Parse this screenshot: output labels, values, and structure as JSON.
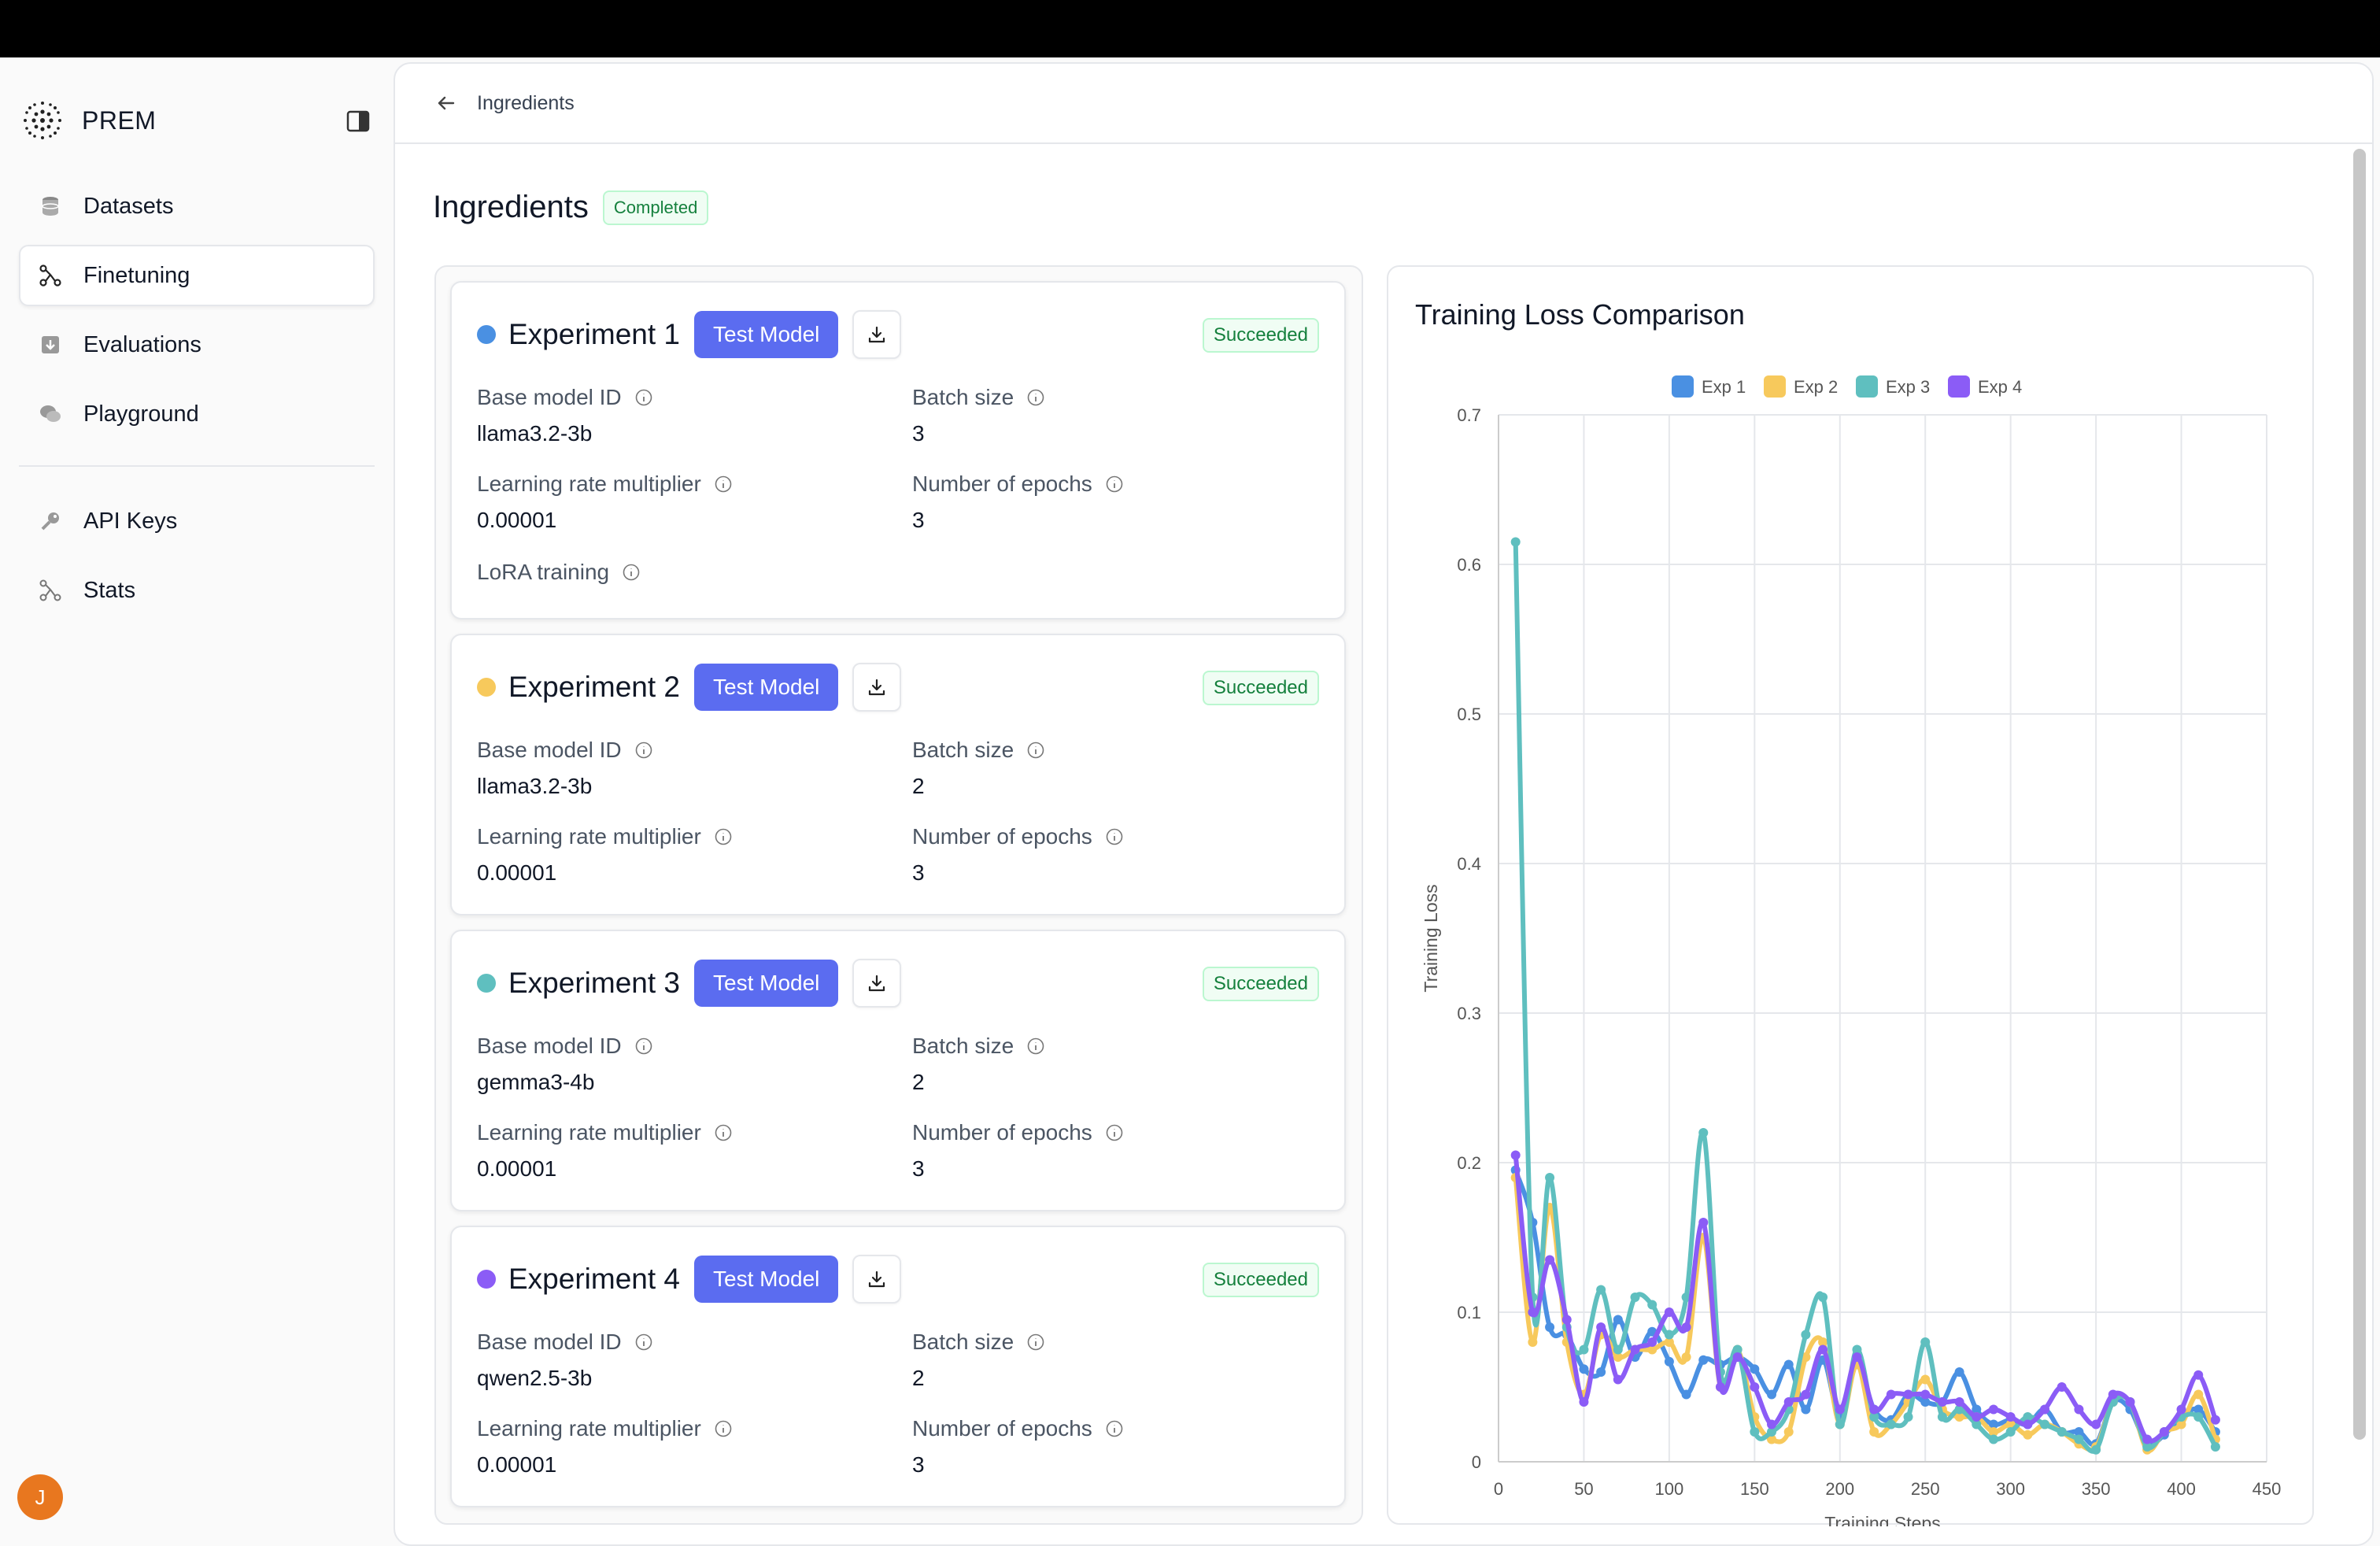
{
  "app": {
    "brand": "PREM",
    "user_initial": "J"
  },
  "sidebar": {
    "items": [
      {
        "label": "Datasets",
        "icon": "database-icon"
      },
      {
        "label": "Finetuning",
        "icon": "finetune-icon",
        "active": true
      },
      {
        "label": "Evaluations",
        "icon": "evaluation-icon"
      },
      {
        "label": "Playground",
        "icon": "chat-icon"
      }
    ],
    "items2": [
      {
        "label": "API Keys",
        "icon": "key-icon"
      },
      {
        "label": "Stats",
        "icon": "stats-icon"
      }
    ]
  },
  "breadcrumb": {
    "label": "Ingredients"
  },
  "page": {
    "title": "Ingredients",
    "status": "Completed"
  },
  "labels": {
    "base_model_id": "Base model ID",
    "batch_size": "Batch size",
    "learning_rate": "Learning rate multiplier",
    "epochs": "Number of epochs",
    "lora": "LoRA training",
    "test_model": "Test Model"
  },
  "experiments": [
    {
      "name": "Experiment 1",
      "color": "#4a90e2",
      "status": "Succeeded",
      "base_model": "llama3.2-3b",
      "batch_size": "3",
      "learning_rate": "0.00001",
      "epochs": "3",
      "lora": true
    },
    {
      "name": "Experiment 2",
      "color": "#f7c95c",
      "status": "Succeeded",
      "base_model": "llama3.2-3b",
      "batch_size": "2",
      "learning_rate": "0.00001",
      "epochs": "3",
      "lora": false
    },
    {
      "name": "Experiment 3",
      "color": "#5fbfbf",
      "status": "Succeeded",
      "base_model": "gemma3-4b",
      "batch_size": "2",
      "learning_rate": "0.00001",
      "epochs": "3",
      "lora": false
    },
    {
      "name": "Experiment 4",
      "color": "#8b5cf6",
      "status": "Succeeded",
      "base_model": "qwen2.5-3b",
      "batch_size": "2",
      "learning_rate": "0.00001",
      "epochs": "3",
      "lora": false
    }
  ],
  "chart_data": {
    "type": "line",
    "title": "Training Loss Comparison",
    "xlabel": "Training Steps",
    "ylabel": "Training Loss",
    "xlim": [
      0,
      450
    ],
    "ylim": [
      0,
      0.7
    ],
    "xticks": [
      0,
      50,
      100,
      150,
      200,
      250,
      300,
      350,
      400,
      450
    ],
    "yticks": [
      0,
      0.1,
      0.2,
      0.3,
      0.4,
      0.5,
      0.6,
      0.7
    ],
    "grid": true,
    "legend": "top-center",
    "series": [
      {
        "name": "Exp 1",
        "color": "#4a90e2",
        "x": [
          10,
          20,
          30,
          40,
          50,
          60,
          70,
          80,
          90,
          100,
          110,
          120,
          130,
          140,
          150,
          160,
          170,
          180,
          190,
          200,
          210,
          220,
          230,
          240,
          250,
          260,
          270,
          280,
          290,
          300,
          310,
          320,
          330,
          340,
          350,
          360,
          370,
          380,
          390,
          400,
          410,
          420
        ],
        "y": [
          0.195,
          0.16,
          0.09,
          0.085,
          0.062,
          0.06,
          0.095,
          0.07,
          0.087,
          0.067,
          0.045,
          0.068,
          0.065,
          0.07,
          0.062,
          0.045,
          0.065,
          0.035,
          0.068,
          0.03,
          0.065,
          0.035,
          0.028,
          0.045,
          0.04,
          0.04,
          0.06,
          0.035,
          0.025,
          0.028,
          0.025,
          0.035,
          0.02,
          0.02,
          0.012,
          0.04,
          0.035,
          0.012,
          0.018,
          0.03,
          0.035,
          0.02
        ]
      },
      {
        "name": "Exp 2",
        "color": "#f7c95c",
        "x": [
          10,
          20,
          30,
          40,
          50,
          60,
          70,
          80,
          90,
          100,
          110,
          120,
          130,
          140,
          150,
          160,
          170,
          180,
          190,
          200,
          210,
          220,
          230,
          240,
          250,
          260,
          270,
          280,
          290,
          300,
          310,
          320,
          330,
          340,
          350,
          360,
          370,
          380,
          390,
          400,
          410,
          420
        ],
        "y": [
          0.19,
          0.08,
          0.17,
          0.08,
          0.045,
          0.085,
          0.07,
          0.075,
          0.075,
          0.08,
          0.07,
          0.15,
          0.05,
          0.075,
          0.03,
          0.015,
          0.02,
          0.07,
          0.08,
          0.025,
          0.065,
          0.02,
          0.025,
          0.04,
          0.055,
          0.035,
          0.03,
          0.03,
          0.02,
          0.025,
          0.018,
          0.025,
          0.02,
          0.012,
          0.01,
          0.04,
          0.04,
          0.008,
          0.02,
          0.025,
          0.045,
          0.015
        ]
      },
      {
        "name": "Exp 3",
        "color": "#5fbfbf",
        "x": [
          10,
          20,
          30,
          40,
          50,
          60,
          70,
          80,
          90,
          100,
          110,
          120,
          130,
          140,
          150,
          160,
          170,
          180,
          190,
          200,
          210,
          220,
          230,
          240,
          250,
          260,
          270,
          280,
          290,
          300,
          310,
          320,
          330,
          340,
          350,
          360,
          370,
          380,
          390,
          400,
          410,
          420
        ],
        "y": [
          0.615,
          0.11,
          0.19,
          0.09,
          0.075,
          0.115,
          0.075,
          0.11,
          0.105,
          0.085,
          0.11,
          0.22,
          0.06,
          0.075,
          0.02,
          0.02,
          0.035,
          0.085,
          0.11,
          0.025,
          0.075,
          0.03,
          0.025,
          0.03,
          0.08,
          0.03,
          0.035,
          0.025,
          0.015,
          0.02,
          0.03,
          0.025,
          0.02,
          0.015,
          0.008,
          0.04,
          0.04,
          0.01,
          0.02,
          0.03,
          0.03,
          0.01
        ]
      },
      {
        "name": "Exp 4",
        "color": "#8b5cf6",
        "x": [
          10,
          20,
          30,
          40,
          50,
          60,
          70,
          80,
          90,
          100,
          110,
          120,
          130,
          140,
          150,
          160,
          170,
          180,
          190,
          200,
          210,
          220,
          230,
          240,
          250,
          260,
          270,
          280,
          290,
          300,
          310,
          320,
          330,
          340,
          350,
          360,
          370,
          380,
          390,
          400,
          410,
          420
        ],
        "y": [
          0.205,
          0.1,
          0.135,
          0.095,
          0.04,
          0.09,
          0.055,
          0.075,
          0.08,
          0.1,
          0.09,
          0.16,
          0.05,
          0.07,
          0.05,
          0.025,
          0.04,
          0.045,
          0.075,
          0.035,
          0.07,
          0.035,
          0.045,
          0.045,
          0.045,
          0.04,
          0.04,
          0.03,
          0.035,
          0.03,
          0.025,
          0.035,
          0.05,
          0.035,
          0.025,
          0.045,
          0.04,
          0.015,
          0.02,
          0.035,
          0.058,
          0.028
        ]
      }
    ]
  }
}
